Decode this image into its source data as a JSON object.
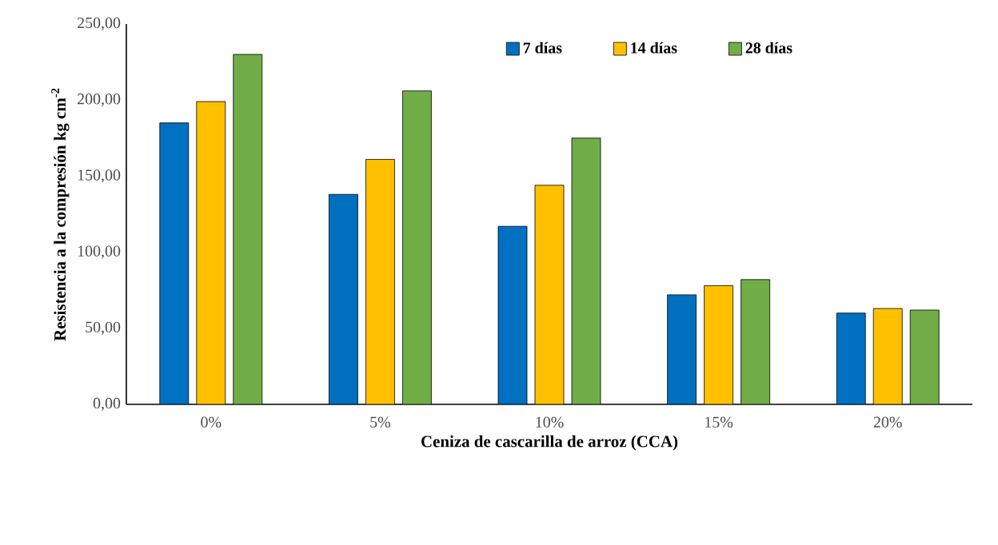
{
  "chart_data": {
    "type": "bar",
    "xlabel": "Ceniza de cascarilla de arroz (CCA)",
    "ylabel": "Resistencia a la compresión  kg cm$^{-2}$",
    "categories": [
      "0%",
      "5%",
      "10%",
      "15%",
      "20%"
    ],
    "series": [
      {
        "name": "7 días",
        "color": "#0070c0",
        "values": [
          185,
          138,
          117,
          72,
          60
        ]
      },
      {
        "name": "14 días",
        "color": "#ffc000",
        "values": [
          199,
          161,
          144,
          78,
          63
        ]
      },
      {
        "name": "28 días",
        "color": "#70ad47",
        "values": [
          230,
          206,
          175,
          82,
          62
        ]
      }
    ],
    "ylim": [
      0,
      250
    ],
    "yticks": [
      {
        "value": 0,
        "label": "0,00"
      },
      {
        "value": 50,
        "label": "50,00"
      },
      {
        "value": 100,
        "label": "100,00"
      },
      {
        "value": 150,
        "label": "150,00"
      },
      {
        "value": 200,
        "label": "200,00"
      },
      {
        "value": 250,
        "label": "250,00"
      }
    ],
    "legend": "top",
    "grid": false
  }
}
